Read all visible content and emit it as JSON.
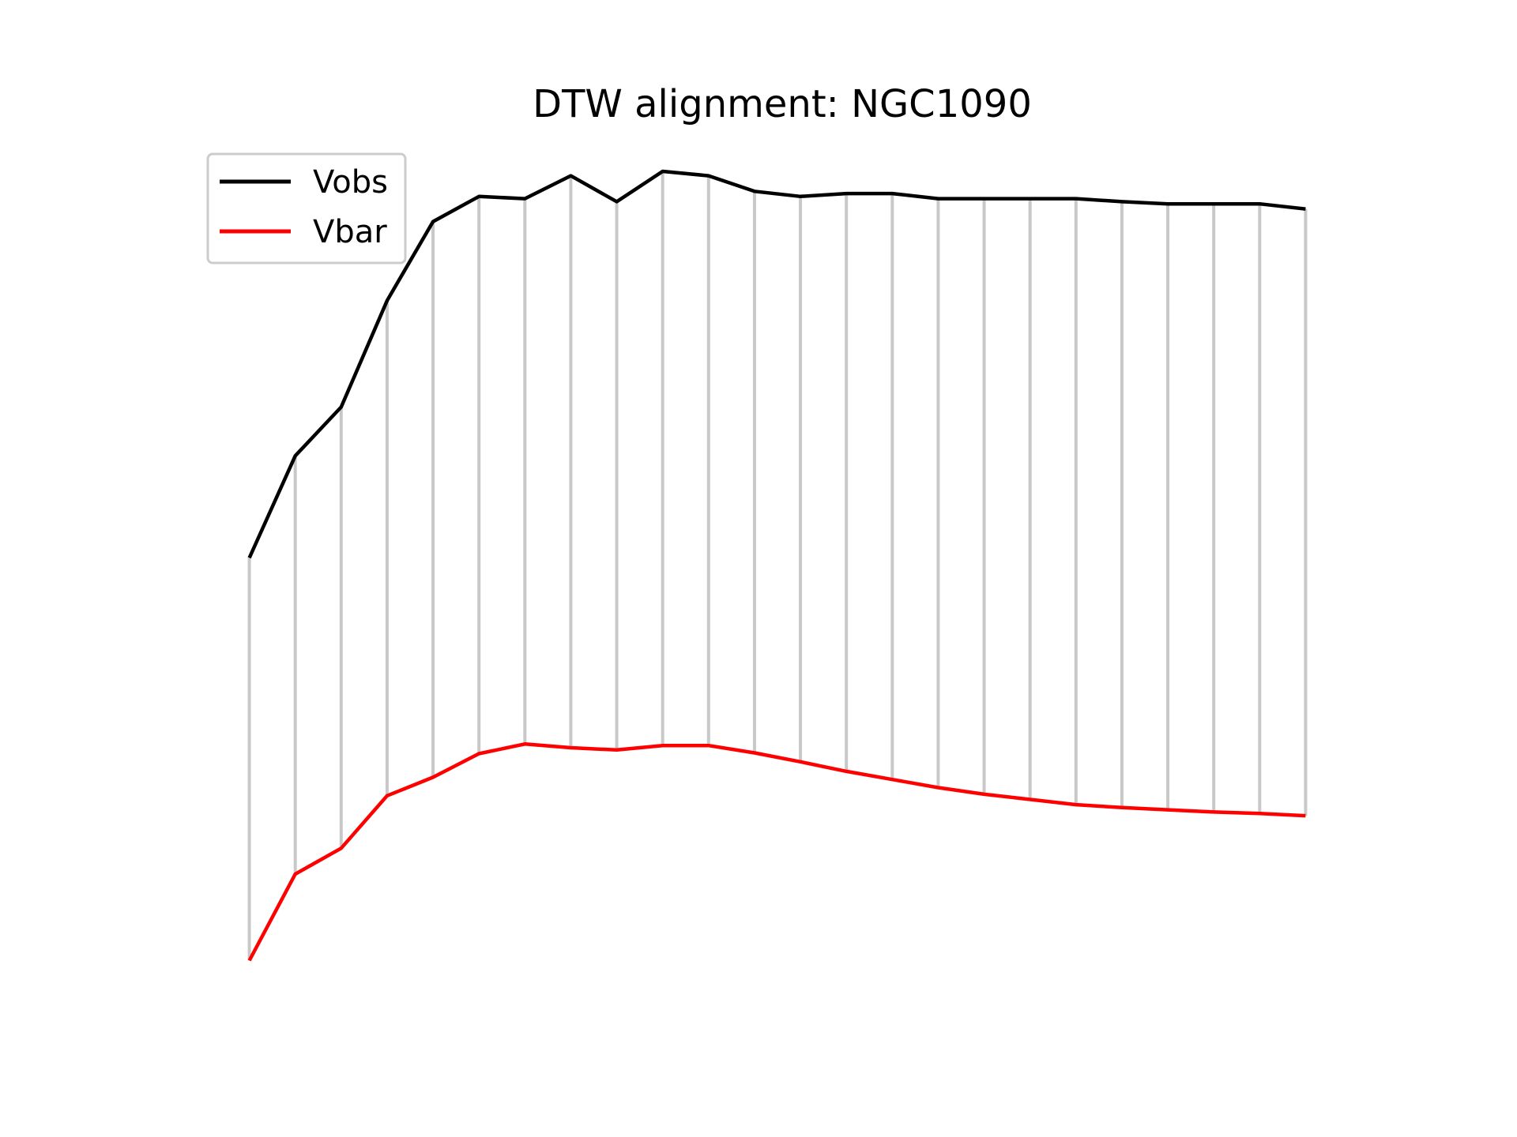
{
  "chart_data": {
    "type": "line",
    "title": "DTW alignment: NGC1090",
    "axes_visible": false,
    "legend_placement": "top-left",
    "x": [
      0,
      1,
      2,
      3,
      4,
      5,
      6,
      7,
      8,
      9,
      10,
      11,
      12,
      13,
      14,
      15,
      16,
      17,
      18,
      19,
      20,
      21,
      22,
      23
    ],
    "series": [
      {
        "name": "Vobs",
        "color": "#000000",
        "values": [
          152.5,
          166.3,
          172.9,
          187.3,
          198.0,
          201.4,
          201.1,
          204.2,
          200.7,
          204.8,
          204.2,
          202.1,
          201.4,
          201.8,
          201.8,
          201.1,
          201.1,
          201.1,
          201.1,
          200.7,
          200.4,
          200.4,
          200.4,
          199.7
        ]
      },
      {
        "name": "Vbar",
        "color": "#ff0000",
        "values": [
          98.0,
          109.7,
          113.2,
          120.3,
          122.8,
          126.0,
          127.3,
          126.8,
          126.5,
          127.1,
          127.1,
          126.1,
          124.9,
          123.6,
          122.5,
          121.4,
          120.5,
          119.8,
          119.1,
          118.7,
          118.4,
          118.1,
          117.9,
          117.6
        ]
      }
    ],
    "alignment_lines": {
      "color": "#c8c8c8",
      "pairs": [
        [
          0,
          0
        ],
        [
          1,
          1
        ],
        [
          2,
          2
        ],
        [
          3,
          3
        ],
        [
          4,
          4
        ],
        [
          5,
          5
        ],
        [
          6,
          6
        ],
        [
          7,
          7
        ],
        [
          8,
          8
        ],
        [
          9,
          9
        ],
        [
          10,
          10
        ],
        [
          11,
          11
        ],
        [
          12,
          12
        ],
        [
          13,
          13
        ],
        [
          14,
          14
        ],
        [
          15,
          15
        ],
        [
          16,
          16
        ],
        [
          17,
          17
        ],
        [
          18,
          18
        ],
        [
          19,
          19
        ],
        [
          20,
          20
        ],
        [
          21,
          21
        ],
        [
          22,
          22
        ],
        [
          23,
          23
        ]
      ]
    },
    "ylim": [
      92.5,
      209.5
    ],
    "xlim": [
      -1.3,
      24.3
    ]
  }
}
